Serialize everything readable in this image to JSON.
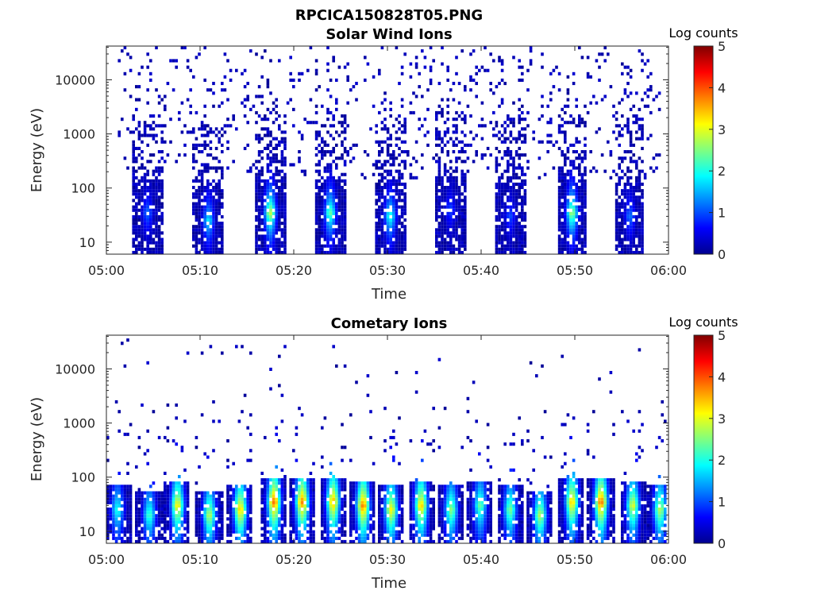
{
  "figure_title": "RPCICA150828T05.PNG",
  "chart_data": [
    {
      "type": "heatmap",
      "title": "Solar Wind Ions",
      "xlabel": "Time",
      "ylabel": "Energy (eV)",
      "y_scale": "log",
      "ylim": [
        6,
        42000
      ],
      "y_ticks": [
        10,
        100,
        1000,
        10000
      ],
      "y_tick_labels": [
        "10",
        "100",
        "1000",
        "10000"
      ],
      "x_ticks": [
        "05:00",
        "05:10",
        "05:20",
        "05:30",
        "05:40",
        "05:50",
        "06:00"
      ],
      "x_range_minutes": [
        0,
        60
      ],
      "colorbar": {
        "label": "Log counts",
        "range": [
          0,
          5
        ],
        "ticks": [
          "0",
          "1",
          "2",
          "3",
          "4",
          "5"
        ],
        "colormap": "jet"
      },
      "grid": false,
      "bursts": [
        {
          "center_min": 4.4,
          "peak_energy_ev": 35,
          "peak_log_counts": 1.2
        },
        {
          "center_min": 10.9,
          "peak_energy_ev": 25,
          "peak_log_counts": 1.8
        },
        {
          "center_min": 17.5,
          "peak_energy_ev": 35,
          "peak_log_counts": 2.9
        },
        {
          "center_min": 23.9,
          "peak_energy_ev": 35,
          "peak_log_counts": 2.4
        },
        {
          "center_min": 30.3,
          "peak_energy_ev": 30,
          "peak_log_counts": 2.1
        },
        {
          "center_min": 36.7,
          "peak_energy_ev": 40,
          "peak_log_counts": 1.0
        },
        {
          "center_min": 43.1,
          "peak_energy_ev": 30,
          "peak_log_counts": 1.0
        },
        {
          "center_min": 49.7,
          "peak_energy_ev": 35,
          "peak_log_counts": 2.7
        },
        {
          "center_min": 55.9,
          "peak_energy_ev": 30,
          "peak_log_counts": 1.2
        }
      ]
    },
    {
      "type": "heatmap",
      "title": "Cometary Ions",
      "xlabel": "Time",
      "ylabel": "Energy (eV)",
      "y_scale": "log",
      "ylim": [
        6,
        42000
      ],
      "y_ticks": [
        10,
        100,
        1000,
        10000
      ],
      "y_tick_labels": [
        "10",
        "100",
        "1000",
        "10000"
      ],
      "x_ticks": [
        "05:00",
        "05:10",
        "05:20",
        "05:30",
        "05:40",
        "05:50",
        "06:00"
      ],
      "x_range_minutes": [
        0,
        60
      ],
      "colorbar": {
        "label": "Log counts",
        "range": [
          0,
          5
        ],
        "ticks": [
          "0",
          "1",
          "2",
          "3",
          "4",
          "5"
        ],
        "colormap": "jet"
      },
      "grid": false,
      "bursts": [
        {
          "center_min": 1.2,
          "peak_energy_ev": 25,
          "peak_log_counts": 2.0
        },
        {
          "center_min": 4.6,
          "peak_energy_ev": 20,
          "peak_log_counts": 2.2
        },
        {
          "center_min": 7.6,
          "peak_energy_ev": 30,
          "peak_log_counts": 3.2
        },
        {
          "center_min": 11.0,
          "peak_energy_ev": 20,
          "peak_log_counts": 2.8
        },
        {
          "center_min": 14.3,
          "peak_energy_ev": 25,
          "peak_log_counts": 3.4
        },
        {
          "center_min": 17.9,
          "peak_energy_ev": 35,
          "peak_log_counts": 3.9
        },
        {
          "center_min": 20.9,
          "peak_energy_ev": 35,
          "peak_log_counts": 3.8
        },
        {
          "center_min": 24.2,
          "peak_energy_ev": 35,
          "peak_log_counts": 3.6
        },
        {
          "center_min": 27.4,
          "peak_energy_ev": 30,
          "peak_log_counts": 3.8
        },
        {
          "center_min": 30.4,
          "peak_energy_ev": 25,
          "peak_log_counts": 3.2
        },
        {
          "center_min": 33.6,
          "peak_energy_ev": 30,
          "peak_log_counts": 3.4
        },
        {
          "center_min": 36.8,
          "peak_energy_ev": 25,
          "peak_log_counts": 2.6
        },
        {
          "center_min": 39.9,
          "peak_energy_ev": 30,
          "peak_log_counts": 2.4
        },
        {
          "center_min": 43.1,
          "peak_energy_ev": 25,
          "peak_log_counts": 2.5
        },
        {
          "center_min": 46.3,
          "peak_energy_ev": 20,
          "peak_log_counts": 2.8
        },
        {
          "center_min": 49.7,
          "peak_energy_ev": 35,
          "peak_log_counts": 3.4
        },
        {
          "center_min": 52.8,
          "peak_energy_ev": 35,
          "peak_log_counts": 3.9
        },
        {
          "center_min": 56.2,
          "peak_energy_ev": 30,
          "peak_log_counts": 3.0
        },
        {
          "center_min": 59.1,
          "peak_energy_ev": 25,
          "peak_log_counts": 2.8
        }
      ]
    }
  ]
}
